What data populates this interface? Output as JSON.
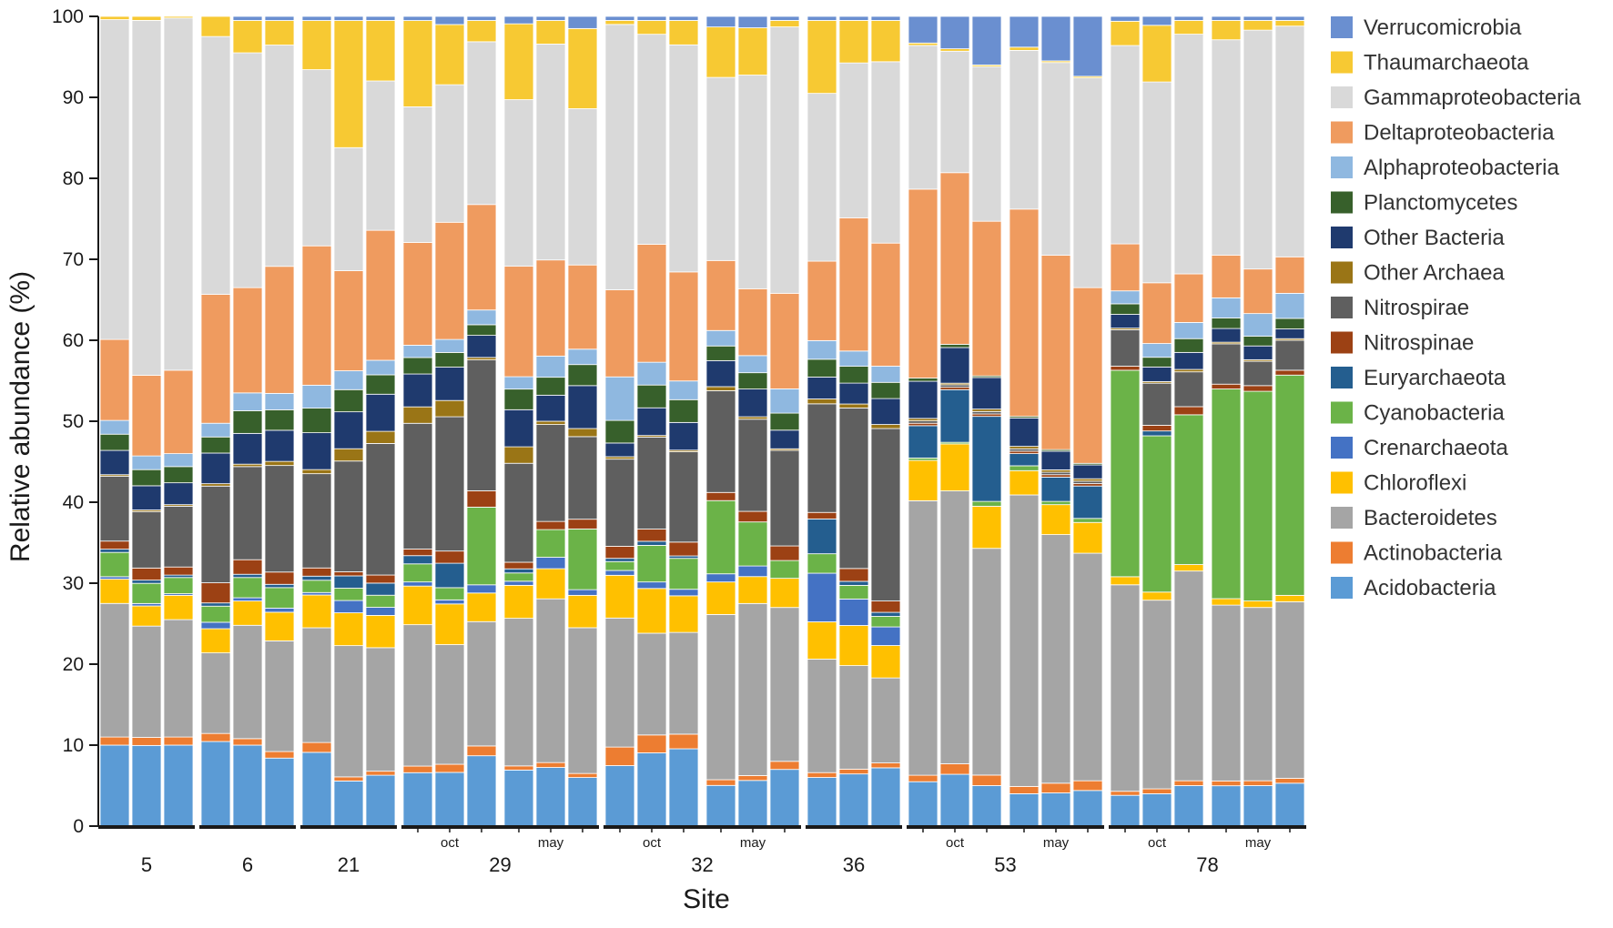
{
  "chart_data": {
    "type": "bar",
    "stacked": true,
    "ylabel": "Relative abundance (%)",
    "xlabel": "Site",
    "ylim": [
      0,
      100
    ],
    "yticks": [
      0,
      10,
      20,
      30,
      40,
      50,
      60,
      70,
      80,
      90,
      100
    ],
    "legend_position": "right",
    "taxa": [
      "Acidobacteria",
      "Actinobacteria",
      "Bacteroidetes",
      "Chloroflexi",
      "Crenarchaeota",
      "Cyanobacteria",
      "Euryarchaeota",
      "Nitrospinae",
      "Nitrospirae",
      "Other Archaea",
      "Other Bacteria",
      "Planctomycetes",
      "Alphaproteobacteria",
      "Deltaproteobacteria",
      "Gammaproteobacteria",
      "Thaumarchaeota",
      "Verrucomicrobia"
    ],
    "legend_order": [
      "Verrucomicrobia",
      "Thaumarchaeota",
      "Gammaproteobacteria",
      "Deltaproteobacteria",
      "Alphaproteobacteria",
      "Planctomycetes",
      "Other Bacteria",
      "Other Archaea",
      "Nitrospirae",
      "Nitrospinae",
      "Euryarchaeota",
      "Cyanobacteria",
      "Crenarchaeota",
      "Chloroflexi",
      "Bacteroidetes",
      "Actinobacteria",
      "Acidobacteria"
    ],
    "colors": {
      "Verrucomicrobia": "#6a8fd0",
      "Thaumarchaeota": "#f7c933",
      "Gammaproteobacteria": "#d9d9d9",
      "Deltaproteobacteria": "#ef9b5f",
      "Alphaproteobacteria": "#8fb8e0",
      "Planctomycetes": "#37602b",
      "Other Bacteria": "#1f3a6e",
      "Other Archaea": "#9a7516",
      "Nitrospirae": "#5f5f5f",
      "Nitrospinae": "#9c4114",
      "Euryarchaeota": "#245e8f",
      "Cyanobacteria": "#6bb348",
      "Crenarchaeota": "#4472c4",
      "Chloroflexi": "#ffc000",
      "Bacteroidetes": "#a5a5a5",
      "Actinobacteria": "#ed7d31",
      "Acidobacteria": "#5b9bd5"
    },
    "groups": [
      {
        "site": "5",
        "months": [],
        "bars": [
          [
            10.0,
            1.0,
            16.5,
            3.0,
            0.3,
            3.0,
            0.4,
            1.0,
            8.0,
            0.2,
            3.0,
            2.0,
            1.7,
            10.0,
            39.5,
            0.4,
            0.0
          ],
          [
            10.0,
            1.0,
            13.8,
            2.5,
            0.3,
            2.5,
            0.4,
            1.5,
            7.0,
            0.2,
            3.0,
            2.0,
            1.7,
            10.0,
            44.0,
            0.5,
            0.0
          ],
          [
            10.0,
            1.0,
            14.5,
            3.0,
            0.2,
            2.0,
            0.3,
            1.0,
            7.5,
            0.2,
            2.7,
            2.0,
            1.6,
            10.3,
            43.5,
            0.2,
            0.0
          ]
        ]
      },
      {
        "site": "6",
        "months": [],
        "bars": [
          [
            10.5,
            1.0,
            10.0,
            3.0,
            0.8,
            2.0,
            0.4,
            2.5,
            12.0,
            0.3,
            3.8,
            2.0,
            1.7,
            16.0,
            32.0,
            2.5,
            0.0
          ],
          [
            10.0,
            0.8,
            14.0,
            3.0,
            0.4,
            2.5,
            0.4,
            1.8,
            11.5,
            0.3,
            3.8,
            2.8,
            2.2,
            13.0,
            29.0,
            4.0,
            0.5
          ],
          [
            8.3,
            0.8,
            13.5,
            3.5,
            0.5,
            2.5,
            0.4,
            1.5,
            13.0,
            0.5,
            3.8,
            2.5,
            2.0,
            15.5,
            27.0,
            3.0,
            0.5
          ]
        ]
      },
      {
        "site": "21",
        "months": [],
        "bars": [
          [
            9.0,
            1.2,
            14.0,
            4.0,
            0.3,
            1.5,
            0.5,
            1.0,
            11.5,
            0.5,
            4.5,
            3.0,
            2.8,
            17.0,
            21.5,
            6.0,
            0.5
          ],
          [
            5.5,
            0.5,
            16.0,
            4.0,
            1.5,
            1.5,
            1.5,
            0.5,
            13.5,
            1.5,
            4.5,
            2.7,
            2.3,
            12.2,
            15.0,
            15.5,
            0.5
          ],
          [
            6.3,
            0.5,
            15.3,
            4.0,
            1.0,
            1.5,
            1.5,
            1.0,
            16.3,
            1.5,
            4.6,
            2.4,
            1.8,
            16.1,
            18.5,
            7.5,
            0.5
          ]
        ]
      },
      {
        "site": "29",
        "months": [
          "oct",
          "may"
        ],
        "bars": [
          [
            6.5,
            0.8,
            17.2,
            4.7,
            0.5,
            2.2,
            1.0,
            0.8,
            15.3,
            2.0,
            4.0,
            2.0,
            1.5,
            12.5,
            16.5,
            10.5,
            0.5
          ],
          [
            6.6,
            1.0,
            14.7,
            5.0,
            0.5,
            1.5,
            3.0,
            1.5,
            16.5,
            2.0,
            4.1,
            1.8,
            1.6,
            14.4,
            16.9,
            7.4,
            1.0
          ],
          [
            8.6,
            1.2,
            15.2,
            3.5,
            1.0,
            9.5,
            0.0,
            2.0,
            16.0,
            0.3,
            2.7,
            1.3,
            1.8,
            12.9,
            19.9,
            2.6,
            0.5
          ]
        ]
      },
      {
        "site": "29b",
        "months": [],
        "bars": [
          [
            6.8,
            0.5,
            17.9,
            4.0,
            0.5,
            1.0,
            0.5,
            0.8,
            12.0,
            2.0,
            4.5,
            2.5,
            1.5,
            13.4,
            20.2,
            9.2,
            0.9
          ],
          [
            7.2,
            0.6,
            20.1,
            3.7,
            1.4,
            3.4,
            0.0,
            1.0,
            11.9,
            0.4,
            3.2,
            2.2,
            2.6,
            11.8,
            26.5,
            2.9,
            0.5
          ],
          [
            6.0,
            0.5,
            18.0,
            4.0,
            0.7,
            7.5,
            0.0,
            1.2,
            10.2,
            1.0,
            5.3,
            2.6,
            1.9,
            10.4,
            19.3,
            9.9,
            1.5
          ]
        ]
      },
      {
        "site": "32",
        "months": [
          "oct",
          "may"
        ],
        "bars": [
          [
            7.5,
            2.3,
            16.0,
            5.3,
            0.6,
            1.1,
            0.4,
            1.5,
            10.8,
            0.3,
            1.7,
            2.8,
            5.4,
            10.8,
            32.9,
            0.5,
            0.5
          ],
          [
            9.0,
            2.2,
            12.5,
            5.5,
            0.8,
            4.5,
            0.5,
            1.5,
            11.3,
            0.2,
            3.4,
            2.8,
            2.8,
            14.5,
            25.8,
            1.7,
            0.5
          ],
          [
            9.5,
            1.8,
            12.5,
            4.5,
            0.8,
            3.8,
            0.3,
            1.7,
            11.1,
            0.2,
            3.4,
            2.8,
            2.3,
            13.4,
            27.9,
            3.0,
            0.5
          ]
        ]
      },
      {
        "site": "32b",
        "months": [],
        "bars": [
          [
            5.0,
            0.7,
            20.3,
            4.0,
            1.0,
            9.0,
            0.0,
            1.0,
            12.5,
            0.5,
            3.2,
            1.8,
            1.9,
            8.6,
            22.5,
            6.2,
            1.3
          ],
          [
            5.6,
            0.6,
            21.1,
            3.3,
            1.3,
            5.4,
            0.0,
            1.3,
            11.3,
            0.3,
            3.4,
            2.0,
            2.1,
            8.2,
            26.2,
            5.8,
            1.4
          ],
          [
            7.0,
            1.0,
            19.0,
            3.6,
            0.0,
            2.2,
            0.0,
            1.8,
            11.8,
            0.2,
            2.3,
            2.1,
            3.0,
            11.8,
            32.9,
            0.8,
            0.5
          ]
        ]
      },
      {
        "site": "36",
        "months": [],
        "bars": [
          [
            6.0,
            0.6,
            14.0,
            4.6,
            6.0,
            2.4,
            4.3,
            0.8,
            13.4,
            0.6,
            2.7,
            2.2,
            2.3,
            9.8,
            20.7,
            9.0,
            0.5
          ],
          [
            6.5,
            0.6,
            12.9,
            5.0,
            3.3,
            1.7,
            0.5,
            1.6,
            20.0,
            0.5,
            2.6,
            2.1,
            1.9,
            16.6,
            19.3,
            5.3,
            0.5
          ],
          [
            7.2,
            0.6,
            10.5,
            4.0,
            2.3,
            1.3,
            0.5,
            1.4,
            21.3,
            0.5,
            3.2,
            2.0,
            2.0,
            15.2,
            22.4,
            5.1,
            0.5
          ]
        ]
      },
      {
        "site": "53",
        "months": [
          "oct",
          "may"
        ],
        "bars": [
          [
            5.5,
            0.8,
            34.0,
            5.0,
            0.0,
            0.3,
            4.0,
            0.3,
            0.3,
            0.3,
            4.6,
            0.4,
            0.0,
            23.4,
            17.8,
            0.3,
            3.3
          ],
          [
            6.4,
            1.3,
            33.7,
            5.8,
            0.0,
            0.2,
            6.5,
            0.3,
            0.3,
            0.2,
            4.4,
            0.4,
            0.0,
            21.2,
            15.0,
            0.3,
            4.0
          ],
          [
            5.0,
            1.3,
            28.0,
            5.2,
            0.0,
            0.6,
            10.5,
            0.3,
            0.3,
            0.3,
            3.9,
            0.2,
            0.0,
            19.1,
            19.1,
            0.2,
            6.0
          ]
        ]
      },
      {
        "site": "53b",
        "months": [],
        "bars": [
          [
            4.0,
            0.9,
            36.0,
            3.0,
            0.0,
            0.6,
            1.5,
            0.3,
            0.3,
            0.3,
            3.5,
            0.2,
            0.0,
            25.6,
            19.6,
            0.4,
            3.8
          ],
          [
            4.1,
            1.2,
            30.7,
            3.7,
            0.0,
            0.4,
            3.0,
            0.3,
            0.3,
            0.3,
            2.3,
            0.2,
            0.0,
            24.0,
            23.8,
            0.2,
            5.5
          ],
          [
            4.4,
            1.2,
            28.1,
            3.8,
            0.0,
            0.5,
            4.0,
            0.3,
            0.3,
            0.3,
            1.7,
            0.2,
            0.0,
            21.7,
            25.9,
            0.2,
            7.4
          ]
        ]
      },
      {
        "site": "78",
        "months": [
          "oct",
          "may"
        ],
        "bars": [
          [
            3.8,
            0.5,
            25.5,
            1.0,
            0.0,
            25.5,
            0.0,
            0.5,
            4.5,
            0.2,
            1.7,
            1.3,
            1.6,
            5.8,
            24.5,
            3.0,
            0.6
          ],
          [
            4.0,
            0.6,
            23.3,
            1.0,
            0.0,
            19.3,
            0.6,
            0.7,
            5.2,
            0.2,
            1.8,
            1.2,
            1.7,
            7.5,
            24.8,
            7.0,
            1.1
          ],
          [
            5.0,
            0.6,
            25.9,
            0.8,
            0.0,
            18.5,
            0.0,
            1.0,
            4.3,
            0.3,
            2.1,
            1.7,
            2.0,
            6.0,
            29.6,
            1.7,
            0.5
          ]
        ]
      },
      {
        "site": "78b",
        "months": [],
        "bars": [
          [
            5.0,
            0.6,
            21.8,
            0.8,
            0.0,
            26.0,
            0.0,
            0.6,
            5.0,
            0.2,
            1.7,
            1.3,
            2.5,
            5.3,
            26.7,
            2.4,
            0.5
          ],
          [
            5.0,
            0.6,
            21.4,
            0.8,
            0.0,
            25.9,
            0.0,
            0.7,
            3.0,
            0.2,
            1.7,
            1.2,
            2.8,
            5.5,
            29.5,
            1.2,
            0.5
          ],
          [
            5.3,
            0.6,
            21.8,
            0.8,
            0.0,
            27.2,
            0.0,
            0.6,
            3.7,
            0.2,
            1.2,
            1.3,
            3.1,
            4.5,
            28.5,
            0.7,
            0.5
          ]
        ]
      }
    ],
    "site_labels": [
      "5",
      "6",
      "21",
      "29",
      "32",
      "36",
      "53",
      "78"
    ],
    "month_labels": {
      "oct": "oct",
      "may": "may"
    }
  }
}
